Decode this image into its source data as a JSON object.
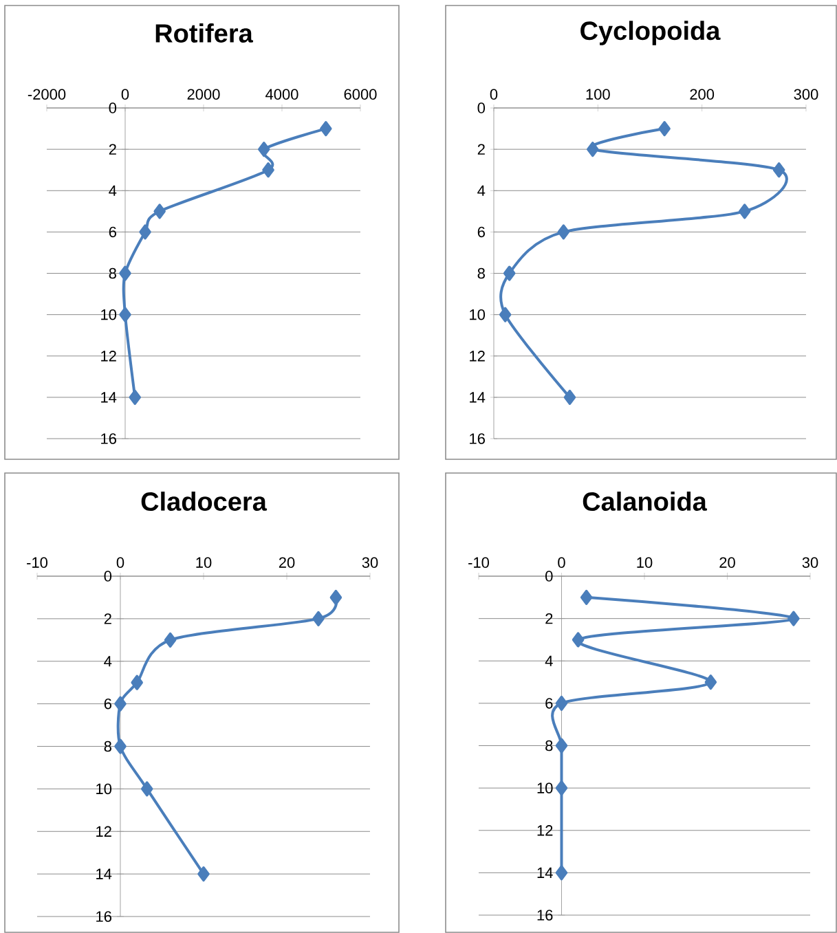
{
  "chart_data": [
    {
      "type": "line",
      "title": "Rotifera",
      "x": [
        5120,
        3540,
        3650,
        880,
        510,
        0,
        0,
        250
      ],
      "values": [
        1,
        2,
        3,
        5,
        6,
        8,
        10,
        14
      ],
      "color": "#4a7ebb",
      "xlim": [
        -2000,
        6000
      ],
      "xticks": [
        -2000,
        0,
        2000,
        4000,
        6000
      ],
      "ylim": [
        16,
        0
      ],
      "yticks": [
        0,
        2,
        4,
        6,
        8,
        10,
        12,
        14,
        16
      ],
      "grid": "y",
      "marker": "diamond",
      "line_style": "solid"
    },
    {
      "type": "line",
      "title": "Cyclopoida",
      "x": [
        164,
        95,
        274,
        241,
        67,
        15,
        11,
        73
      ],
      "values": [
        1,
        2,
        3,
        5,
        6,
        8,
        10,
        14
      ],
      "color": "#4a7ebb",
      "xlim": [
        0,
        300
      ],
      "xticks": [
        0,
        100,
        200,
        300
      ],
      "ylim": [
        16,
        0
      ],
      "yticks": [
        0,
        2,
        4,
        6,
        8,
        10,
        12,
        14,
        16
      ],
      "grid": "y",
      "marker": "diamond",
      "line_style": "solid"
    },
    {
      "type": "line",
      "title": "Cladocera",
      "x": [
        25.9,
        23.8,
        6,
        2,
        0,
        0,
        3.2,
        10
      ],
      "values": [
        1,
        2,
        3,
        5,
        6,
        8,
        10,
        14
      ],
      "color": "#4a7ebb",
      "xlim": [
        -10,
        30
      ],
      "xticks": [
        -10,
        0,
        10,
        20,
        30
      ],
      "ylim": [
        16,
        0
      ],
      "yticks": [
        0,
        2,
        4,
        6,
        8,
        10,
        12,
        14,
        16
      ],
      "grid": "y",
      "marker": "diamond",
      "line_style": "solid"
    },
    {
      "type": "line",
      "title": "Calanoida",
      "x": [
        3,
        28,
        2,
        18,
        0,
        0,
        0,
        0
      ],
      "values": [
        1,
        2,
        3,
        5,
        6,
        8,
        10,
        14
      ],
      "color": "#4a7ebb",
      "xlim": [
        -10,
        30
      ],
      "xticks": [
        -10,
        0,
        10,
        20,
        30
      ],
      "ylim": [
        16,
        0
      ],
      "yticks": [
        0,
        2,
        4,
        6,
        8,
        10,
        12,
        14,
        16
      ],
      "grid": "y",
      "marker": "diamond",
      "line_style": "solid"
    }
  ]
}
